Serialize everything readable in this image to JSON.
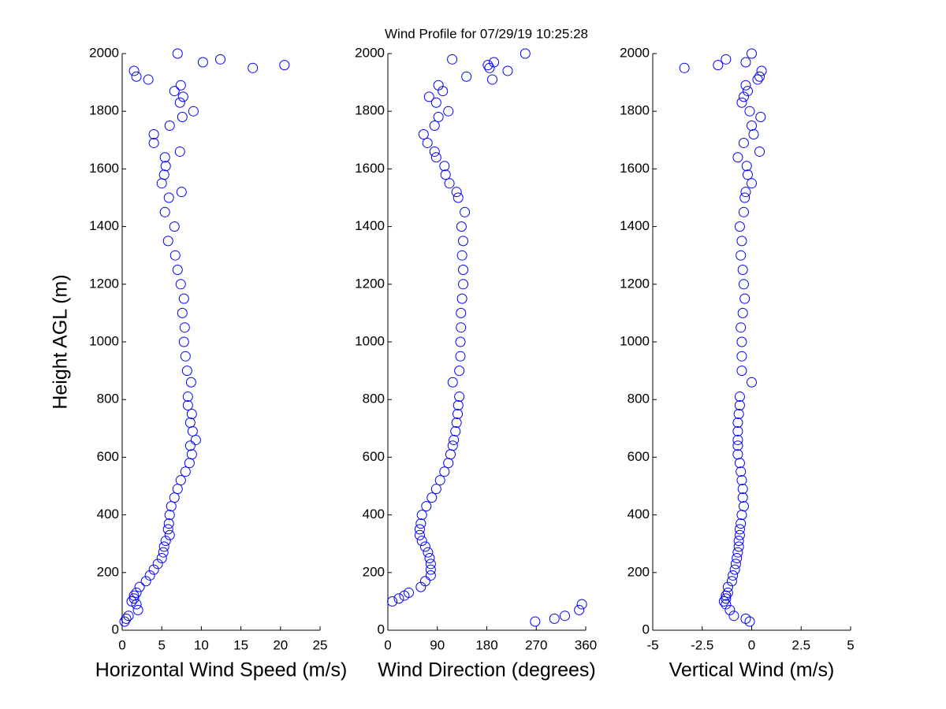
{
  "title": "Wind Profile for  07/29/19 10:25:28",
  "chart_data": [
    {
      "type": "scatter",
      "xlabel": "Horizontal Wind Speed (m/s)",
      "ylabel": "Height AGL (m)",
      "color": "#0000ff",
      "xlim": [
        0,
        25
      ],
      "xticks": [
        0,
        5,
        10,
        15,
        20,
        25
      ],
      "ylim": [
        0,
        2000
      ],
      "yticks": [
        0,
        200,
        400,
        600,
        800,
        1000,
        1200,
        1400,
        1600,
        1800,
        2000
      ],
      "x": [
        0.3,
        0.5,
        0.8,
        2,
        1.8,
        1.2,
        1.5,
        1.5,
        1.8,
        2.2,
        3,
        3.5,
        4,
        4.5,
        5,
        5.2,
        5.3,
        5.5,
        6,
        5.8,
        5.9,
        6,
        6.2,
        6.6,
        7,
        7.4,
        8,
        8.5,
        8.8,
        8.6,
        9.3,
        8.9,
        8.6,
        8.8,
        8.3,
        8.3,
        8.7,
        8.2,
        8,
        7.8,
        7.9,
        7.6,
        7.8,
        7.4,
        7,
        6.7,
        5.8,
        6.6,
        5.4,
        5.9,
        7.5,
        5,
        5.3,
        5.5,
        5.4,
        7.3,
        4,
        4,
        6,
        7.6,
        9,
        7.3,
        7.7,
        6.6,
        7.4,
        3.3,
        1.8,
        1.5,
        16.5,
        20.5,
        10.2,
        12.4,
        7
      ],
      "values": [
        30,
        40,
        50,
        70,
        90,
        100,
        110,
        120,
        130,
        150,
        170,
        190,
        210,
        230,
        250,
        270,
        290,
        310,
        330,
        350,
        370,
        400,
        430,
        460,
        490,
        520,
        550,
        580,
        610,
        640,
        660,
        690,
        720,
        750,
        780,
        810,
        860,
        900,
        950,
        1000,
        1050,
        1100,
        1150,
        1200,
        1250,
        1300,
        1350,
        1400,
        1450,
        1500,
        1520,
        1550,
        1580,
        1610,
        1640,
        1660,
        1690,
        1720,
        1750,
        1780,
        1800,
        1830,
        1850,
        1870,
        1890,
        1910,
        1920,
        1940,
        1950,
        1960,
        1970,
        1980,
        2000
      ]
    },
    {
      "type": "scatter",
      "xlabel": "Wind Direction (degrees)",
      "color": "#0000ff",
      "xlim": [
        0,
        360
      ],
      "xticks": [
        0,
        90,
        180,
        270,
        360
      ],
      "ylim": [
        0,
        2000
      ],
      "yticks": [
        0,
        200,
        400,
        600,
        800,
        1000,
        1200,
        1400,
        1600,
        1800,
        2000
      ],
      "x": [
        268,
        303,
        322,
        348,
        353,
        8,
        20,
        30,
        38,
        60,
        68,
        78,
        78,
        78,
        76,
        73,
        68,
        62,
        58,
        58,
        60,
        62,
        70,
        80,
        88,
        95,
        103,
        110,
        114,
        118,
        120,
        123,
        125,
        127,
        128,
        130,
        118,
        130,
        132,
        132,
        133,
        133,
        135,
        137,
        137,
        135,
        137,
        134,
        140,
        128,
        125,
        112,
        105,
        103,
        88,
        85,
        72,
        65,
        85,
        92,
        110,
        88,
        75,
        100,
        92,
        190,
        143,
        218,
        185,
        182,
        193,
        117,
        250
      ],
      "values": [
        30,
        40,
        50,
        70,
        90,
        100,
        110,
        120,
        130,
        150,
        170,
        190,
        210,
        230,
        250,
        270,
        290,
        310,
        330,
        350,
        370,
        400,
        430,
        460,
        490,
        520,
        550,
        580,
        610,
        640,
        660,
        690,
        720,
        750,
        780,
        810,
        860,
        900,
        950,
        1000,
        1050,
        1100,
        1150,
        1200,
        1250,
        1300,
        1350,
        1400,
        1450,
        1500,
        1520,
        1550,
        1580,
        1610,
        1640,
        1660,
        1690,
        1720,
        1750,
        1780,
        1800,
        1830,
        1850,
        1870,
        1890,
        1910,
        1920,
        1940,
        1950,
        1960,
        1970,
        1980,
        2000
      ]
    },
    {
      "type": "scatter",
      "xlabel": "Vertical Wind (m/s)",
      "color": "#0000ff",
      "xlim": [
        -5,
        5
      ],
      "xticks": [
        -5,
        -2.5,
        0,
        2.5,
        5
      ],
      "ylim": [
        0,
        2000
      ],
      "yticks": [
        0,
        200,
        400,
        600,
        800,
        1000,
        1200,
        1400,
        1600,
        1800,
        2000
      ],
      "x": [
        -0.1,
        -0.3,
        -0.9,
        -1.1,
        -1.3,
        -1.4,
        -1.3,
        -1.3,
        -1.2,
        -1.2,
        -1,
        -0.95,
        -0.85,
        -0.8,
        -0.75,
        -0.7,
        -0.65,
        -0.65,
        -0.6,
        -0.6,
        -0.55,
        -0.5,
        -0.4,
        -0.45,
        -0.45,
        -0.5,
        -0.55,
        -0.6,
        -0.7,
        -0.7,
        -0.7,
        -0.7,
        -0.7,
        -0.65,
        -0.6,
        -0.6,
        0,
        -0.5,
        -0.5,
        -0.5,
        -0.55,
        -0.45,
        -0.35,
        -0.4,
        -0.45,
        -0.55,
        -0.5,
        -0.6,
        -0.4,
        -0.35,
        -0.3,
        0,
        -0.2,
        -0.25,
        -0.7,
        0.4,
        -0.4,
        0.1,
        0,
        0.45,
        -0.1,
        -0.5,
        -0.4,
        -0.2,
        -0.3,
        0.3,
        0.4,
        0.5,
        -3.4,
        -1.7,
        -0.3,
        -1.3,
        0
      ],
      "values": [
        30,
        40,
        50,
        70,
        90,
        100,
        110,
        120,
        130,
        150,
        170,
        190,
        210,
        230,
        250,
        270,
        290,
        310,
        330,
        350,
        370,
        400,
        430,
        460,
        490,
        520,
        550,
        580,
        610,
        640,
        660,
        690,
        720,
        750,
        780,
        810,
        860,
        900,
        950,
        1000,
        1050,
        1100,
        1150,
        1200,
        1250,
        1300,
        1350,
        1400,
        1450,
        1500,
        1520,
        1550,
        1580,
        1610,
        1640,
        1660,
        1690,
        1720,
        1750,
        1780,
        1800,
        1830,
        1850,
        1870,
        1890,
        1910,
        1920,
        1940,
        1950,
        1960,
        1970,
        1980,
        2000
      ]
    }
  ]
}
